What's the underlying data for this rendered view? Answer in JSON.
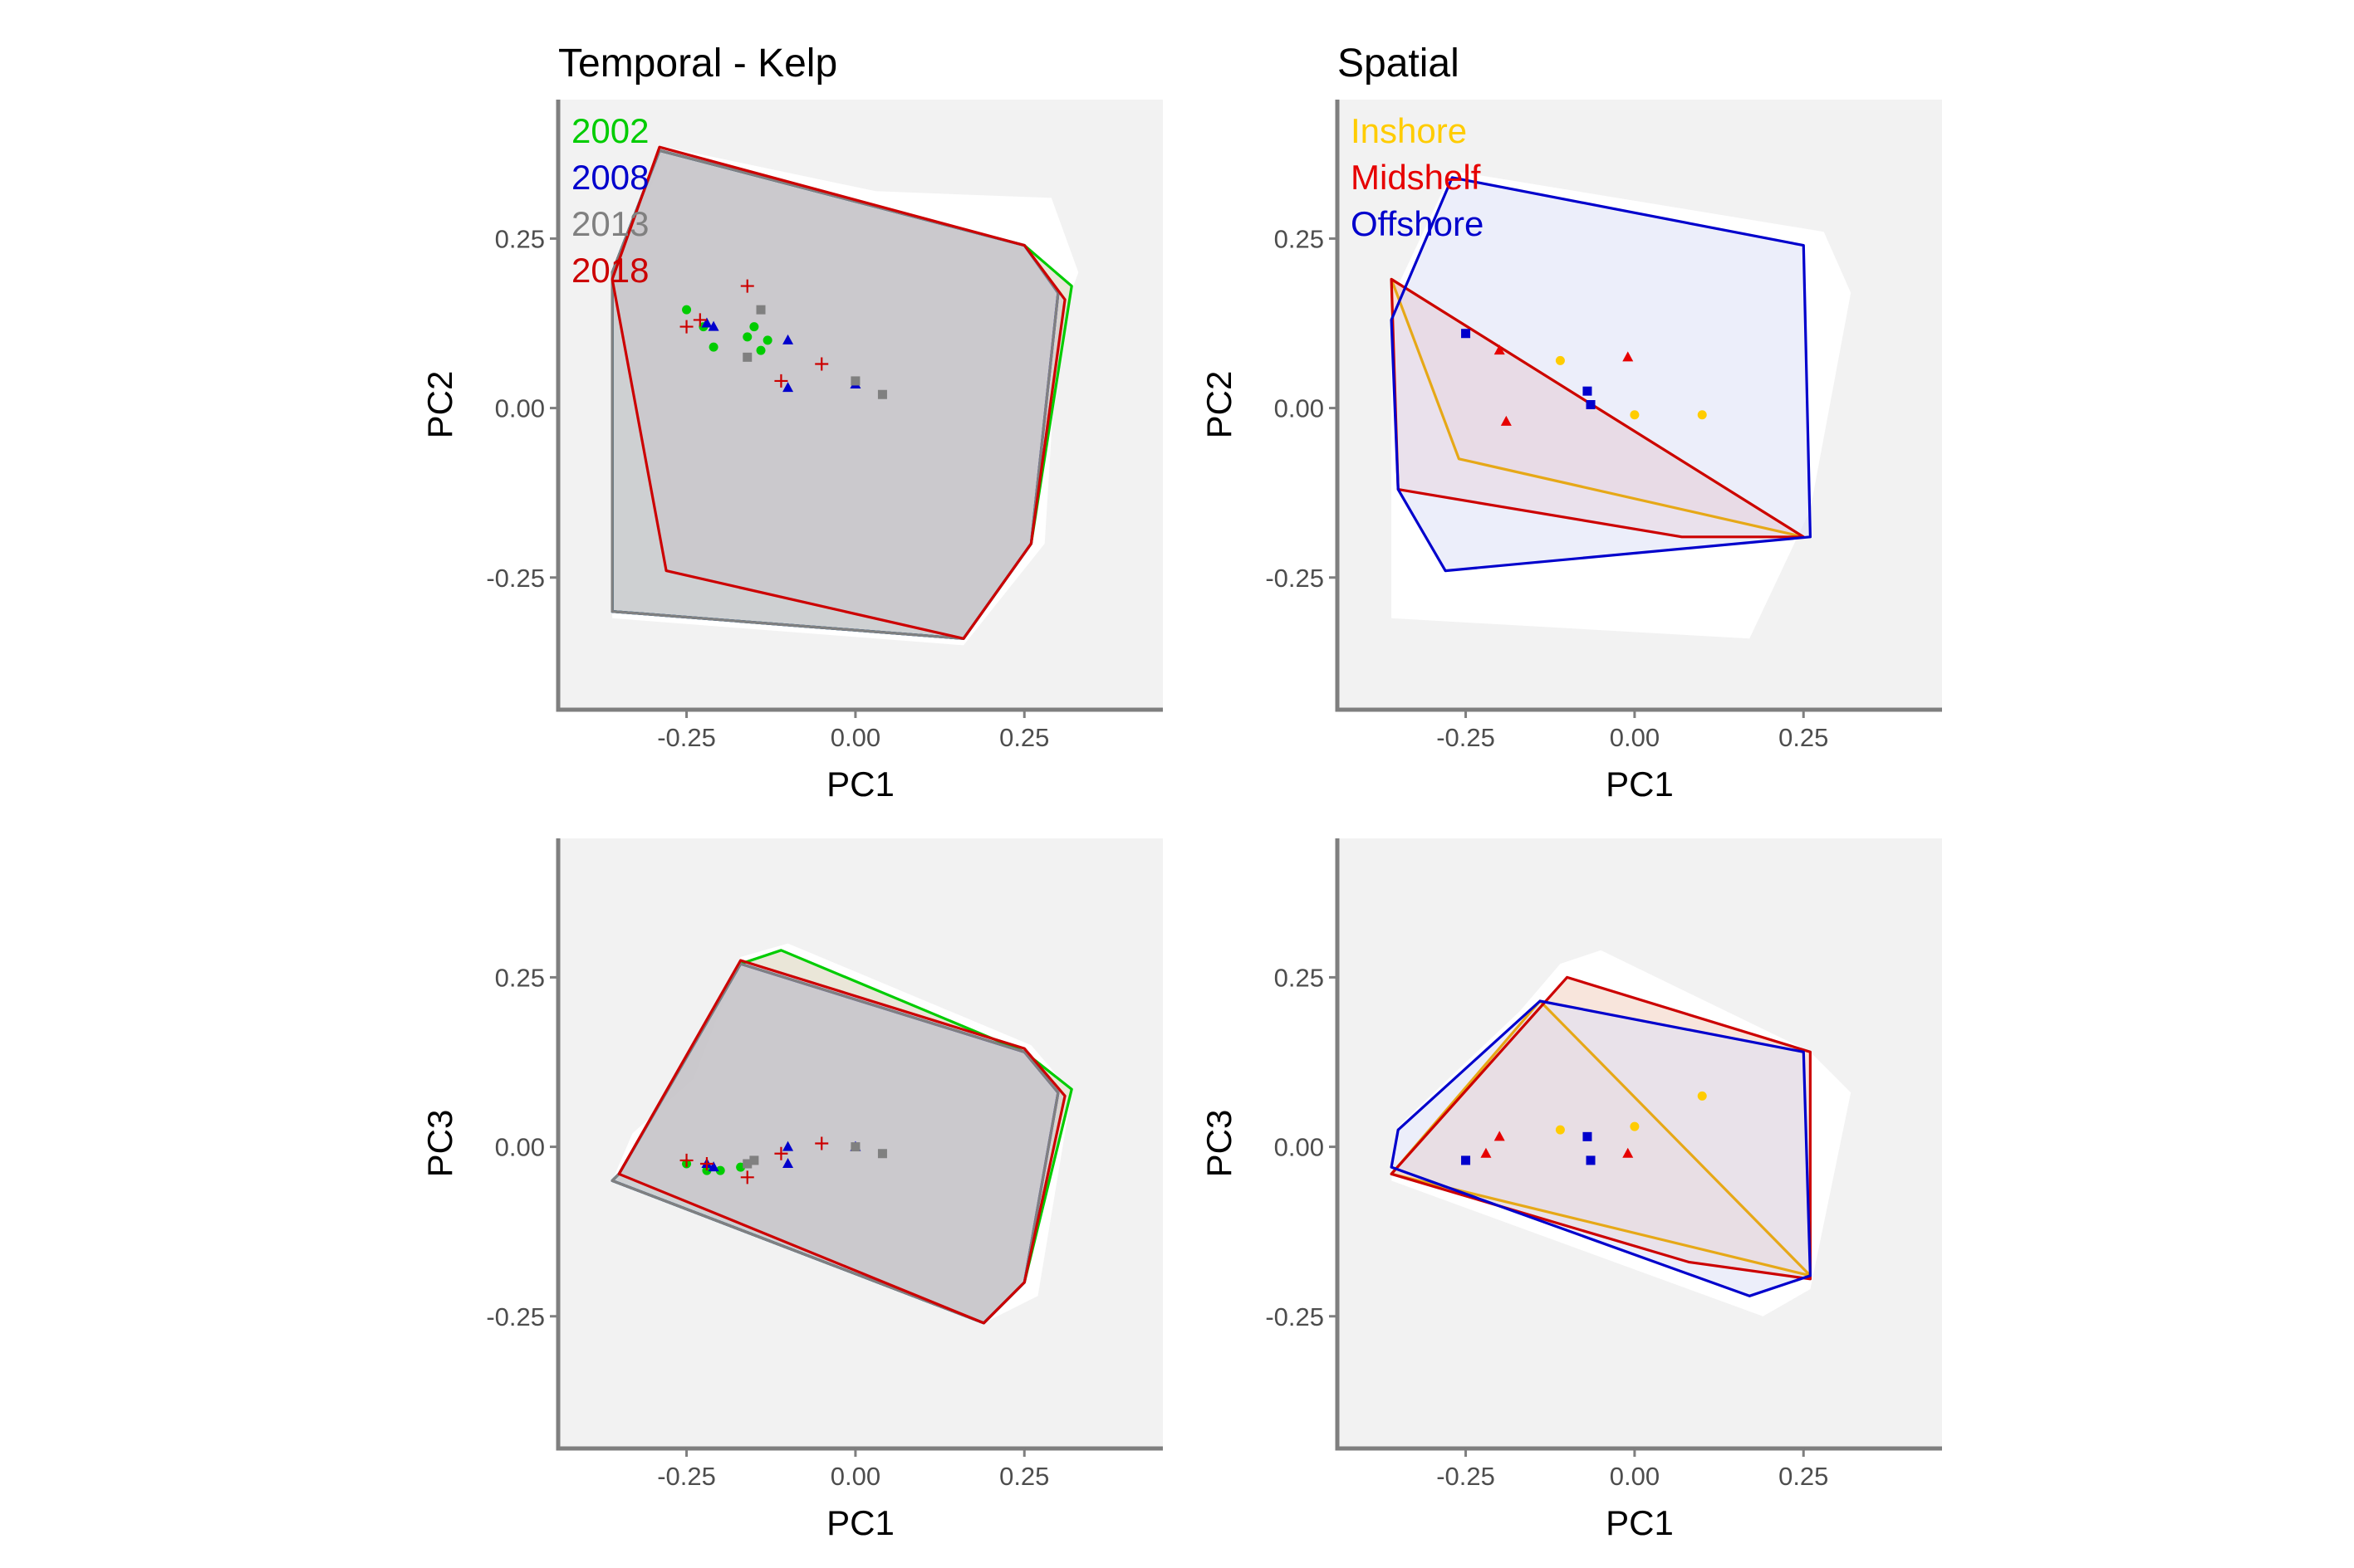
{
  "colors": {
    "panel_bg": "#F2F2F2",
    "axis_line": "#7F7F7F",
    "tick_text": "#4D4D4D",
    "title_text": "#000000",
    "hull_gap": "#FFFFFF"
  },
  "chart_data": [
    {
      "type": "scatter",
      "panel": "temporal-pc1-pc2",
      "title": "Temporal - Kelp",
      "xlabel": "PC1",
      "ylabel": "PC2",
      "xlim": [
        -0.44,
        0.455
      ],
      "ylim": [
        -0.445,
        0.455
      ],
      "x_ticks": [
        -0.25,
        0,
        0.25
      ],
      "x_tick_labels": [
        "-0.25",
        "0.00",
        "0.25"
      ],
      "y_ticks": [
        -0.25,
        0,
        0.25
      ],
      "y_tick_labels": [
        "-0.25",
        "0.00",
        "0.25"
      ],
      "legend": "top-left",
      "grid": false,
      "background_hull": [
        [
          -0.36,
          0.18
        ],
        [
          -0.28,
          0.385
        ],
        [
          0.03,
          0.32
        ],
        [
          0.29,
          0.31
        ],
        [
          0.33,
          0.2
        ],
        [
          0.3,
          0.12
        ],
        [
          0.28,
          -0.2
        ],
        [
          0.16,
          -0.35
        ],
        [
          -0.36,
          -0.31
        ]
      ],
      "series": [
        {
          "name": "2002",
          "color": "#00CC00",
          "fill": "#D9D2B8",
          "marker": "circle",
          "points": [
            [
              -0.25,
              0.145
            ],
            [
              -0.225,
              0.12
            ],
            [
              -0.21,
              0.09
            ],
            [
              -0.16,
              0.105
            ],
            [
              -0.15,
              0.12
            ],
            [
              -0.14,
              0.085
            ],
            [
              -0.13,
              0.1
            ]
          ],
          "hull": [
            [
              -0.36,
              0.2
            ],
            [
              -0.29,
              0.38
            ],
            [
              0.25,
              0.24
            ],
            [
              0.32,
              0.18
            ],
            [
              0.26,
              -0.2
            ],
            [
              0.16,
              -0.34
            ],
            [
              -0.36,
              -0.3
            ]
          ]
        },
        {
          "name": "2008",
          "color": "#0000CC",
          "fill": "#C4DCE1",
          "marker": "triangle",
          "points": [
            [
              -0.22,
              0.125
            ],
            [
              -0.21,
              0.12
            ],
            [
              -0.1,
              0.1
            ],
            [
              -0.1,
              0.03
            ],
            [
              0.0,
              0.035
            ]
          ],
          "hull": [
            [
              -0.36,
              0.2
            ],
            [
              -0.29,
              0.38
            ],
            [
              0.25,
              0.24
            ],
            [
              0.3,
              0.17
            ],
            [
              0.26,
              -0.2
            ],
            [
              0.16,
              -0.34
            ],
            [
              -0.36,
              -0.3
            ]
          ]
        },
        {
          "name": "2013",
          "color": "#808080",
          "fill": "#C9C2C8",
          "marker": "square",
          "points": [
            [
              -0.14,
              0.145
            ],
            [
              -0.16,
              0.075
            ],
            [
              0.0,
              0.04
            ],
            [
              0.04,
              0.02
            ]
          ],
          "hull": [
            [
              -0.36,
              0.2
            ],
            [
              -0.29,
              0.38
            ],
            [
              0.25,
              0.24
            ],
            [
              0.3,
              0.17
            ],
            [
              0.26,
              -0.2
            ],
            [
              0.16,
              -0.34
            ],
            [
              -0.36,
              -0.3
            ]
          ]
        },
        {
          "name": "2018",
          "color": "#CC0000",
          "fill": "#C9C2C8",
          "marker": "plus",
          "points": [
            [
              -0.25,
              0.12
            ],
            [
              -0.23,
              0.13
            ],
            [
              -0.16,
              0.18
            ],
            [
              -0.11,
              0.04
            ],
            [
              -0.05,
              0.065
            ]
          ],
          "hull": [
            [
              -0.36,
              0.19
            ],
            [
              -0.29,
              0.385
            ],
            [
              0.25,
              0.24
            ],
            [
              0.31,
              0.16
            ],
            [
              0.26,
              -0.2
            ],
            [
              0.16,
              -0.34
            ],
            [
              -0.28,
              -0.24
            ]
          ]
        }
      ]
    },
    {
      "type": "scatter",
      "panel": "spatial-pc1-pc2",
      "title": "Spatial",
      "xlabel": "PC1",
      "ylabel": "PC2",
      "xlim": [
        -0.44,
        0.455
      ],
      "ylim": [
        -0.445,
        0.455
      ],
      "x_ticks": [
        -0.25,
        0,
        0.25
      ],
      "x_tick_labels": [
        "-0.25",
        "0.00",
        "0.25"
      ],
      "y_ticks": [
        -0.25,
        0,
        0.25
      ],
      "y_tick_labels": [
        "-0.25",
        "0.00",
        "0.25"
      ],
      "legend": "top-left",
      "grid": false,
      "background_hull": [
        [
          -0.36,
          0.16
        ],
        [
          -0.27,
          0.35
        ],
        [
          0.28,
          0.26
        ],
        [
          0.32,
          0.17
        ],
        [
          0.26,
          -0.15
        ],
        [
          0.17,
          -0.34
        ],
        [
          -0.36,
          -0.31
        ]
      ],
      "series": [
        {
          "name": "Inshore",
          "color": "#E6A817",
          "label_color": "#FFCC00",
          "fill": "#E9C9CC",
          "marker": "circle",
          "points": [
            [
              -0.11,
              0.07
            ],
            [
              0.0,
              -0.01
            ],
            [
              0.1,
              -0.01
            ]
          ],
          "hull": [
            [
              -0.36,
              0.19
            ],
            [
              -0.26,
              -0.075
            ],
            [
              0.25,
              -0.19
            ]
          ]
        },
        {
          "name": "Midshelf",
          "color": "#CC0000",
          "label_color": "#E60000",
          "fill": "#F5CBC5",
          "marker": "triangle",
          "points": [
            [
              -0.2,
              0.085
            ],
            [
              -0.19,
              -0.02
            ],
            [
              -0.01,
              0.075
            ]
          ],
          "hull": [
            [
              -0.36,
              0.19
            ],
            [
              -0.35,
              -0.12
            ],
            [
              0.07,
              -0.19
            ],
            [
              0.25,
              -0.19
            ]
          ]
        },
        {
          "name": "Offshore",
          "color": "#0000CC",
          "label_color": "#0000CC",
          "fill": "#DDE0F5",
          "marker": "square",
          "points": [
            [
              -0.25,
              0.11
            ],
            [
              -0.07,
              0.025
            ],
            [
              -0.065,
              0.005
            ]
          ],
          "hull": [
            [
              -0.36,
              0.13
            ],
            [
              -0.27,
              0.34
            ],
            [
              0.25,
              0.24
            ],
            [
              0.26,
              -0.19
            ],
            [
              -0.28,
              -0.24
            ],
            [
              -0.35,
              -0.12
            ]
          ]
        }
      ]
    },
    {
      "type": "scatter",
      "panel": "temporal-pc1-pc3",
      "title": "",
      "xlabel": "PC1",
      "ylabel": "PC3",
      "xlim": [
        -0.44,
        0.455
      ],
      "ylim": [
        -0.445,
        0.455
      ],
      "x_ticks": [
        -0.25,
        0,
        0.25
      ],
      "x_tick_labels": [
        "-0.25",
        "0.00",
        "0.25"
      ],
      "y_ticks": [
        -0.25,
        0,
        0.25
      ],
      "y_tick_labels": [
        "-0.25",
        "0.00",
        "0.25"
      ],
      "legend": "none",
      "grid": false,
      "background_hull": [
        [
          -0.36,
          -0.05
        ],
        [
          -0.33,
          0.02
        ],
        [
          -0.24,
          0.1
        ],
        [
          -0.17,
          0.28
        ],
        [
          -0.1,
          0.3
        ],
        [
          0.26,
          0.15
        ],
        [
          0.32,
          0.08
        ],
        [
          0.27,
          -0.22
        ],
        [
          0.19,
          -0.26
        ],
        [
          -0.36,
          -0.05
        ]
      ],
      "series": [
        {
          "name": "2002",
          "color": "#00CC00",
          "fill": "#D9D2B8",
          "marker": "circle",
          "points": [
            [
              -0.25,
              -0.025
            ],
            [
              -0.22,
              -0.035
            ],
            [
              -0.2,
              -0.035
            ],
            [
              -0.17,
              -0.03
            ],
            [
              -0.16,
              -0.025
            ]
          ],
          "hull": [
            [
              -0.35,
              -0.04
            ],
            [
              -0.17,
              0.27
            ],
            [
              -0.11,
              0.29
            ],
            [
              0.25,
              0.14
            ],
            [
              0.32,
              0.085
            ],
            [
              0.25,
              -0.2
            ],
            [
              0.19,
              -0.26
            ],
            [
              -0.36,
              -0.05
            ]
          ]
        },
        {
          "name": "2008",
          "color": "#0000CC",
          "fill": "#C4DCE1",
          "marker": "triangle",
          "points": [
            [
              -0.22,
              -0.025
            ],
            [
              -0.21,
              -0.03
            ],
            [
              -0.1,
              0.0
            ],
            [
              -0.1,
              -0.025
            ],
            [
              0.0,
              0.0
            ]
          ],
          "hull": [
            [
              -0.35,
              -0.04
            ],
            [
              -0.17,
              0.27
            ],
            [
              0.25,
              0.14
            ],
            [
              0.3,
              0.08
            ],
            [
              0.25,
              -0.2
            ],
            [
              0.19,
              -0.26
            ],
            [
              -0.36,
              -0.05
            ]
          ]
        },
        {
          "name": "2013",
          "color": "#808080",
          "fill": "#C9C2C8",
          "marker": "square",
          "points": [
            [
              -0.16,
              -0.025
            ],
            [
              -0.15,
              -0.02
            ],
            [
              0.0,
              0.0
            ],
            [
              0.04,
              -0.01
            ]
          ],
          "hull": [
            [
              -0.35,
              -0.04
            ],
            [
              -0.17,
              0.27
            ],
            [
              0.25,
              0.14
            ],
            [
              0.3,
              0.08
            ],
            [
              0.25,
              -0.2
            ],
            [
              0.19,
              -0.26
            ],
            [
              -0.36,
              -0.05
            ]
          ]
        },
        {
          "name": "2018",
          "color": "#CC0000",
          "fill": "#C9C2C8",
          "marker": "plus",
          "points": [
            [
              -0.25,
              -0.02
            ],
            [
              -0.22,
              -0.025
            ],
            [
              -0.16,
              -0.045
            ],
            [
              -0.11,
              -0.01
            ],
            [
              -0.05,
              0.005
            ]
          ],
          "hull": [
            [
              -0.35,
              -0.04
            ],
            [
              -0.17,
              0.275
            ],
            [
              0.25,
              0.145
            ],
            [
              0.31,
              0.075
            ],
            [
              0.25,
              -0.2
            ],
            [
              0.19,
              -0.26
            ],
            [
              -0.35,
              -0.04
            ]
          ]
        }
      ]
    },
    {
      "type": "scatter",
      "panel": "spatial-pc1-pc3",
      "title": "",
      "xlabel": "PC1",
      "ylabel": "PC3",
      "xlim": [
        -0.44,
        0.455
      ],
      "ylim": [
        -0.445,
        0.455
      ],
      "x_ticks": [
        -0.25,
        0,
        0.25
      ],
      "x_tick_labels": [
        "-0.25",
        "0.00",
        "0.25"
      ],
      "y_ticks": [
        -0.25,
        0,
        0.25
      ],
      "y_tick_labels": [
        "-0.25",
        "0.00",
        "0.25"
      ],
      "legend": "none",
      "grid": false,
      "background_hull": [
        [
          -0.36,
          -0.05
        ],
        [
          -0.35,
          0.03
        ],
        [
          -0.17,
          0.2
        ],
        [
          -0.11,
          0.27
        ],
        [
          -0.05,
          0.29
        ],
        [
          0.26,
          0.14
        ],
        [
          0.32,
          0.08
        ],
        [
          0.26,
          -0.21
        ],
        [
          0.19,
          -0.25
        ],
        [
          -0.36,
          -0.05
        ]
      ],
      "series": [
        {
          "name": "Inshore",
          "color": "#E6A817",
          "label_color": "#FFCC00",
          "fill": "#F2D7C4",
          "marker": "circle",
          "points": [
            [
              -0.11,
              0.025
            ],
            [
              0.0,
              0.03
            ],
            [
              0.1,
              0.075
            ]
          ],
          "hull": [
            [
              -0.36,
              -0.04
            ],
            [
              -0.14,
              0.215
            ],
            [
              0.26,
              -0.19
            ]
          ]
        },
        {
          "name": "Midshelf",
          "color": "#CC0000",
          "label_color": "#E60000",
          "fill": "#F2D0C0",
          "marker": "triangle",
          "points": [
            [
              -0.2,
              0.015
            ],
            [
              -0.22,
              -0.01
            ],
            [
              -0.01,
              -0.01
            ]
          ],
          "hull": [
            [
              -0.36,
              -0.04
            ],
            [
              -0.1,
              0.25
            ],
            [
              0.26,
              0.14
            ],
            [
              0.26,
              -0.195
            ],
            [
              0.08,
              -0.17
            ],
            [
              -0.36,
              -0.04
            ]
          ]
        },
        {
          "name": "Offshore",
          "color": "#0000CC",
          "label_color": "#0000CC",
          "fill": "#DDE0F5",
          "marker": "square",
          "points": [
            [
              -0.25,
              -0.02
            ],
            [
              -0.07,
              0.015
            ],
            [
              -0.065,
              -0.02
            ]
          ],
          "hull": [
            [
              -0.36,
              -0.03
            ],
            [
              -0.35,
              0.025
            ],
            [
              -0.14,
              0.215
            ],
            [
              0.25,
              0.14
            ],
            [
              0.26,
              -0.19
            ],
            [
              0.17,
              -0.22
            ],
            [
              -0.36,
              -0.03
            ]
          ]
        }
      ]
    }
  ]
}
